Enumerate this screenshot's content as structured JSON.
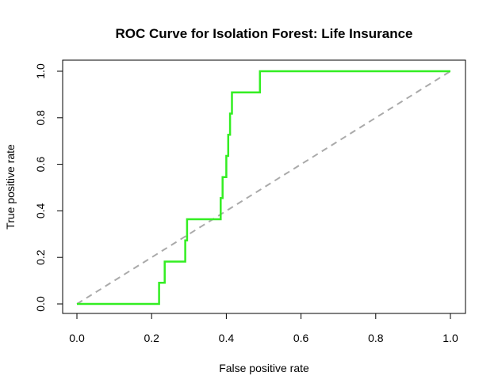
{
  "chart_data": {
    "type": "line",
    "title": "ROC Curve for Isolation Forest: Life Insurance",
    "xlabel": "False positive rate",
    "ylabel": "True positive rate",
    "xlim": [
      0.0,
      1.0
    ],
    "ylim": [
      0.0,
      1.0
    ],
    "x_ticks": [
      "0.0",
      "0.2",
      "0.4",
      "0.6",
      "0.8",
      "1.0"
    ],
    "y_ticks": [
      "0.0",
      "0.2",
      "0.4",
      "0.6",
      "0.8",
      "1.0"
    ],
    "grid": false,
    "legend": "none",
    "series": [
      {
        "color": "#33ee22",
        "style": "solid",
        "points": [
          [
            0.0,
            0.0
          ],
          [
            0.22,
            0.0
          ],
          [
            0.22,
            0.091
          ],
          [
            0.235,
            0.091
          ],
          [
            0.235,
            0.182
          ],
          [
            0.29,
            0.182
          ],
          [
            0.29,
            0.273
          ],
          [
            0.295,
            0.273
          ],
          [
            0.295,
            0.364
          ],
          [
            0.385,
            0.364
          ],
          [
            0.385,
            0.455
          ],
          [
            0.39,
            0.455
          ],
          [
            0.39,
            0.545
          ],
          [
            0.4,
            0.545
          ],
          [
            0.4,
            0.636
          ],
          [
            0.405,
            0.636
          ],
          [
            0.405,
            0.727
          ],
          [
            0.41,
            0.727
          ],
          [
            0.41,
            0.818
          ],
          [
            0.415,
            0.818
          ],
          [
            0.415,
            0.909
          ],
          [
            0.49,
            0.909
          ],
          [
            0.49,
            1.0
          ],
          [
            1.0,
            1.0
          ]
        ]
      },
      {
        "color": "#aaaaaa",
        "style": "dashed",
        "points": [
          [
            0.0,
            0.0
          ],
          [
            1.0,
            1.0
          ]
        ]
      }
    ]
  }
}
